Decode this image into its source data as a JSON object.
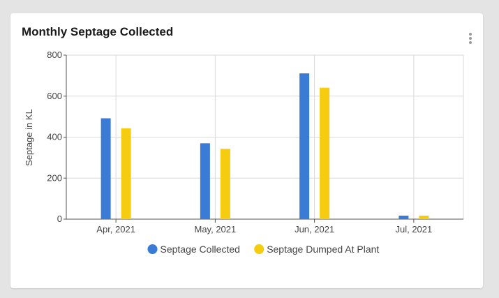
{
  "card": {
    "title": "Monthly Septage Collected",
    "menu_icon": "more-vert-icon"
  },
  "chart_data": {
    "type": "bar",
    "title": "",
    "xlabel": "",
    "ylabel": "Septage in KL",
    "categories": [
      "Apr, 2021",
      "May, 2021",
      "Jun, 2021",
      "Jul, 2021"
    ],
    "ylim": [
      0,
      800
    ],
    "yticks": [
      "0",
      "200",
      "400",
      "600",
      "800"
    ],
    "grid": true,
    "legend_position": "bottom",
    "series": [
      {
        "name": "Septage Collected",
        "color": "#3a7bd5",
        "values": [
          492,
          370,
          711,
          17
        ]
      },
      {
        "name": "Septage Dumped At Plant",
        "color": "#f5cc0f",
        "values": [
          443,
          343,
          641,
          17
        ]
      }
    ]
  }
}
